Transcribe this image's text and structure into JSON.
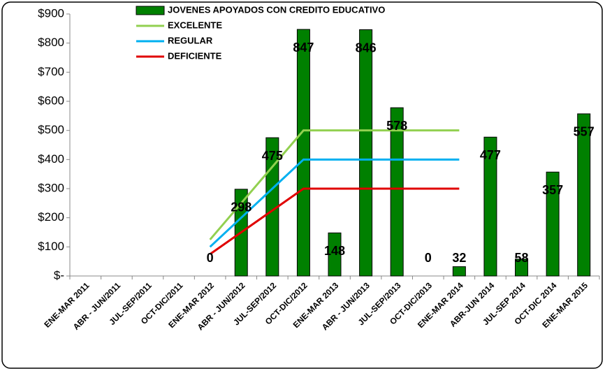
{
  "chart_data": {
    "type": "bar",
    "categories": [
      "ENE-MAR 2011",
      "ABR - JUN/2011",
      "JUL-SEP/2011",
      "OCT-DIC/2011",
      "ENE-MAR 2012",
      "ABR - JUN/2012",
      "JUL-SEP/2012",
      "OCT-DIC/2012",
      "ENE-MAR 2013",
      "ABR - JUN/2013",
      "JUL-SEP/2013",
      "OCT-DIC/2013",
      "ENE-MAR 2014",
      "ABR-JUN 2014",
      "JUL-SEP 2014",
      "OCT-DIC 2014",
      "ENE-MAR 2015"
    ],
    "series": [
      {
        "name": "JOVENES APOYADOS CON CREDITO EDUCATIVO",
        "type": "bar",
        "color": "#008000",
        "values": [
          null,
          null,
          null,
          null,
          0,
          298,
          475,
          847,
          148,
          846,
          578,
          0,
          32,
          477,
          58,
          357,
          557
        ]
      },
      {
        "name": "EXCELENTE",
        "type": "line",
        "color": "#92d050",
        "values": [
          null,
          null,
          null,
          null,
          125,
          250,
          375,
          500,
          500,
          500,
          500,
          500,
          500,
          null,
          null,
          null,
          null
        ]
      },
      {
        "name": "REGULAR",
        "type": "line",
        "color": "#00b0f0",
        "values": [
          null,
          null,
          null,
          null,
          100,
          200,
          300,
          400,
          400,
          400,
          400,
          400,
          400,
          null,
          null,
          null,
          null
        ]
      },
      {
        "name": "DEFICIENTE",
        "type": "line",
        "color": "#e00000",
        "values": [
          null,
          null,
          null,
          null,
          75,
          150,
          225,
          300,
          300,
          300,
          300,
          300,
          300,
          null,
          null,
          null,
          null
        ]
      }
    ],
    "ylim": [
      0,
      900
    ],
    "yticks": [
      {
        "value": 0,
        "label": "$-"
      },
      {
        "value": 100,
        "label": "$100"
      },
      {
        "value": 200,
        "label": "$200"
      },
      {
        "value": 300,
        "label": "$300"
      },
      {
        "value": 400,
        "label": "$400"
      },
      {
        "value": 500,
        "label": "$500"
      },
      {
        "value": 600,
        "label": "$600"
      },
      {
        "value": 700,
        "label": "$700"
      },
      {
        "value": 800,
        "label": "$800"
      },
      {
        "value": 900,
        "label": "$900"
      }
    ],
    "grid": false
  }
}
